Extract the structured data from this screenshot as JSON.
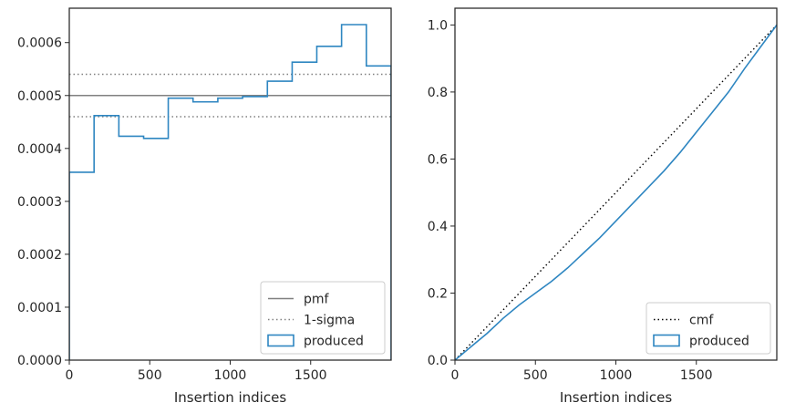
{
  "chart_data": [
    {
      "type": "step",
      "xlabel": "Insertion indices",
      "ylabel": "",
      "xlim": [
        0,
        2000
      ],
      "ylim": [
        0,
        0.000665
      ],
      "xticks": [
        0,
        500,
        1000,
        1500
      ],
      "xtick_labels": [
        "0",
        "500",
        "1000",
        "1500"
      ],
      "yticks": [
        0,
        0.0001,
        0.0002,
        0.0003,
        0.0004,
        0.0005,
        0.0006
      ],
      "ytick_labels": [
        "0.0000",
        "0.0001",
        "0.0002",
        "0.0003",
        "0.0004",
        "0.0005",
        "0.0006"
      ],
      "grid": false,
      "legend_position": "lower right",
      "reference_lines": [
        {
          "name": "pmf",
          "y": 0.0005,
          "style": "solid",
          "color": "#808080"
        },
        {
          "name": "1-sigma",
          "y": [
            0.00046,
            0.00054
          ],
          "style": "dotted",
          "color": "#808080"
        }
      ],
      "series": [
        {
          "name": "produced",
          "color": "#2e86c1",
          "bin_edges": [
            0,
            154,
            308,
            462,
            615,
            769,
            923,
            1077,
            1231,
            1385,
            1538,
            1692,
            1846,
            2000
          ],
          "values": [
            0.000355,
            0.000462,
            0.000423,
            0.000419,
            0.000495,
            0.000488,
            0.000495,
            0.000498,
            0.000527,
            0.000563,
            0.000593,
            0.000634,
            0.000556
          ]
        }
      ],
      "legend": [
        "pmf",
        "1-sigma",
        "produced"
      ]
    },
    {
      "type": "line",
      "xlabel": "Insertion indices",
      "ylabel": "",
      "xlim": [
        0,
        2000
      ],
      "ylim": [
        0,
        1.05
      ],
      "xticks": [
        0,
        500,
        1000,
        1500
      ],
      "xtick_labels": [
        "0",
        "500",
        "1000",
        "1500"
      ],
      "yticks": [
        0,
        0.2,
        0.4,
        0.6,
        0.8,
        1.0
      ],
      "ytick_labels": [
        "0.0",
        "0.2",
        "0.4",
        "0.6",
        "0.8",
        "1.0"
      ],
      "grid": false,
      "legend_position": "lower right",
      "series": [
        {
          "name": "cmf",
          "style": "dotted",
          "color": "#000000",
          "x": [
            0,
            2000
          ],
          "y": [
            0,
            1.0
          ]
        },
        {
          "name": "produced",
          "style": "solid",
          "color": "#2e86c1",
          "x": [
            0,
            100,
            200,
            300,
            400,
            500,
            600,
            700,
            800,
            900,
            1000,
            1100,
            1200,
            1300,
            1400,
            1500,
            1600,
            1700,
            1800,
            1900,
            2000
          ],
          "y": [
            0,
            0.04,
            0.08,
            0.125,
            0.165,
            0.2,
            0.235,
            0.275,
            0.32,
            0.365,
            0.415,
            0.465,
            0.515,
            0.565,
            0.62,
            0.68,
            0.74,
            0.8,
            0.87,
            0.935,
            1.0
          ]
        }
      ],
      "legend": [
        "cmf",
        "produced"
      ]
    }
  ]
}
